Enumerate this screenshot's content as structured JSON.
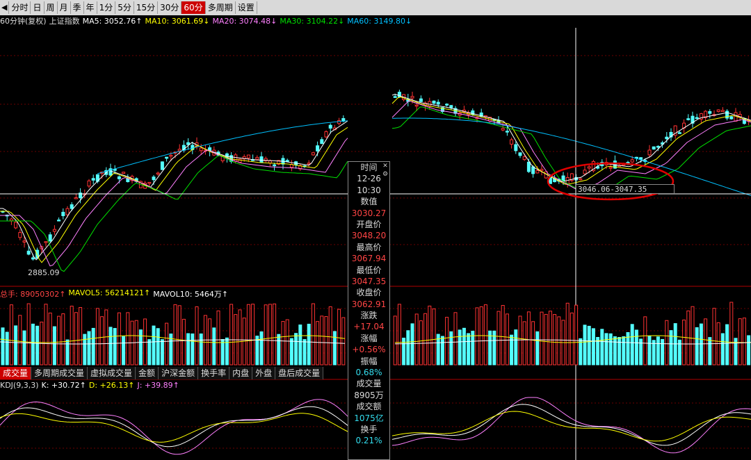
{
  "toolbar": {
    "icon": "collapse-arrow-icon",
    "items": [
      "分时",
      "日",
      "周",
      "月",
      "季",
      "年",
      "1分",
      "5分",
      "15分",
      "30分",
      "60分",
      "多周期",
      "设置"
    ],
    "active": "60分"
  },
  "main_header": {
    "title": "60分钟(复权)",
    "index_name": "上证指数",
    "ma5": "MA5: 3052.76↑",
    "ma10": "MA10: 3061.69↓",
    "ma20": "MA20: 3074.48↓",
    "ma30": "MA30: 3104.22↓",
    "ma60": "MA60: 3149.80↓"
  },
  "main_chart": {
    "low_label": "2885.09",
    "range_label": "3046.06-3047.35"
  },
  "volume_header": {
    "total": "总手: 89050302↑",
    "mavol5": "MAVOL5: 56214121↑",
    "mavol10": "MAVOL10: 5464万↑"
  },
  "tabs": [
    "成交量",
    "多周期成交量",
    "虚拟成交量",
    "金额",
    "沪深金额",
    "换手率",
    "内盘",
    "外盘",
    "盘后成交量"
  ],
  "active_tab": "成交量",
  "kdj_header": {
    "name": "KDJ(9,3,3)",
    "k": "K: +30.72↑",
    "d": "D: +26.13↑",
    "j": "J: +39.89↑"
  },
  "info_popup": {
    "time_label": "时间",
    "date": "12-26",
    "time": "10:30",
    "value_label": "数值",
    "value": "3030.27",
    "open_label": "开盘价",
    "open": "3048.20",
    "high_label": "最高价",
    "high": "3067.94",
    "low_label": "最低价",
    "low": "3047.35",
    "close_label": "收盘价",
    "close": "3062.91",
    "change_label": "涨跌",
    "change": "+17.04",
    "pct_label": "涨幅",
    "pct": "+0.56%",
    "amp_label": "振幅",
    "amp": "0.68%",
    "volume_label": "成交量",
    "volume": "8905万",
    "amount_label": "成交额",
    "amount": "1075亿",
    "turnover_label": "换手",
    "turnover": "0.21%"
  },
  "colors": {
    "up": "#ff3232",
    "down": "#54ffff",
    "ma5": "#ffffff",
    "ma10": "#ffff00",
    "ma20": "#ff80ff",
    "ma30": "#00e000",
    "ma60": "#00c0ff",
    "highlight": "#e00000"
  }
}
